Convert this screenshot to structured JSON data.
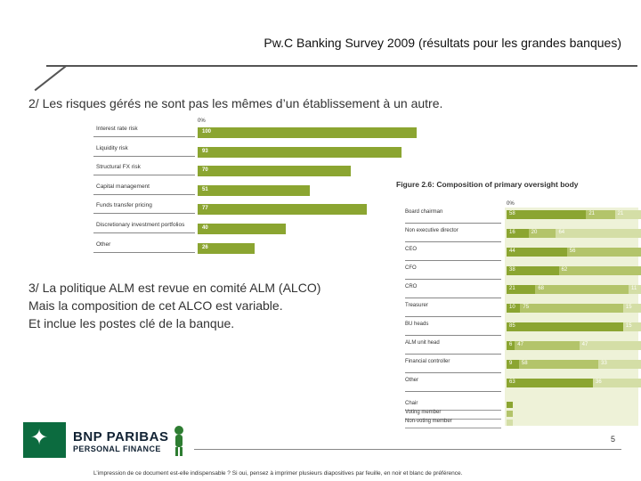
{
  "header": {
    "title": "Pw.C Banking Survey 2009 (résultats pour les grandes banques)"
  },
  "sections": {
    "s2": "2/ Les risques gérés ne sont pas les mêmes d’un établissement à un autre.",
    "s3_line1": "3/ La politique ALM est revue en comité ALM (ALCO)",
    "s3_line2": "Mais la composition de cet ALCO est variable.",
    "s3_line3": "Et inclue les postes clé de la banque."
  },
  "colors": {
    "green": "#8ba531",
    "mid_green": "#b3c46a",
    "light_green": "#d4dea6",
    "rule": "#555555"
  },
  "chart_data": [
    {
      "type": "bar",
      "title": "",
      "axis_zero_label": "0%",
      "categories": [
        "Interest rate risk",
        "Liquidity risk",
        "Structural FX risk",
        "Capital management",
        "Funds transfer pricing",
        "Discretionary investment portfolios",
        "Other"
      ],
      "values": [
        100,
        93,
        70,
        51,
        77,
        40,
        26
      ],
      "value_labels": [
        "100",
        "93",
        "70",
        "51",
        "77",
        "40",
        "26"
      ],
      "xlim": [
        0,
        100
      ]
    },
    {
      "type": "bar",
      "stacked": true,
      "title": "Figure 2.6: Composition of primary oversight body",
      "axis_zero_label": "0%",
      "categories": [
        "Board chairman",
        "Non executive director",
        "CEO",
        "CFO",
        "CRO",
        "Treasurer",
        "BU heads",
        "ALM unit head",
        "Financial controller",
        "Other"
      ],
      "series": [
        {
          "name": "Chair",
          "color": "#8ba531",
          "values": [
            58,
            16,
            44,
            38,
            21,
            10,
            85,
            6,
            9,
            63
          ]
        },
        {
          "name": "Voting member",
          "color": "#b3c46a",
          "values": [
            21,
            20,
            56,
            62,
            68,
            75,
            0,
            47,
            58,
            0
          ]
        },
        {
          "name": "Non-voting member",
          "color": "#d4dea6",
          "values": [
            21,
            64,
            0,
            0,
            11,
            15,
            15,
            47,
            33,
            36
          ]
        }
      ],
      "value_labels": [
        [
          "58",
          "21",
          "21"
        ],
        [
          "16",
          "20",
          "64"
        ],
        [
          "44",
          "56",
          ""
        ],
        [
          "38",
          "62",
          ""
        ],
        [
          "21",
          "68",
          "11"
        ],
        [
          "10",
          "75",
          "15"
        ],
        [
          "85",
          "",
          "15"
        ],
        [
          "6",
          "47",
          "47"
        ],
        [
          "9",
          "58",
          "33"
        ],
        [
          "63",
          "",
          "36"
        ]
      ],
      "legend": [
        "Chair",
        "Voting member",
        "Non-voting member"
      ]
    }
  ],
  "branding": {
    "line1": "BNP PARIBAS",
    "line2": "PERSONAL FINANCE",
    "logo_icon": "star-icon"
  },
  "footer": {
    "page_number": "5",
    "disclaimer": "L’impression de ce document est-elle indispensable ? Si oui, pensez à imprimer plusieurs diapositives par feuille, en noir et blanc de préférence."
  }
}
